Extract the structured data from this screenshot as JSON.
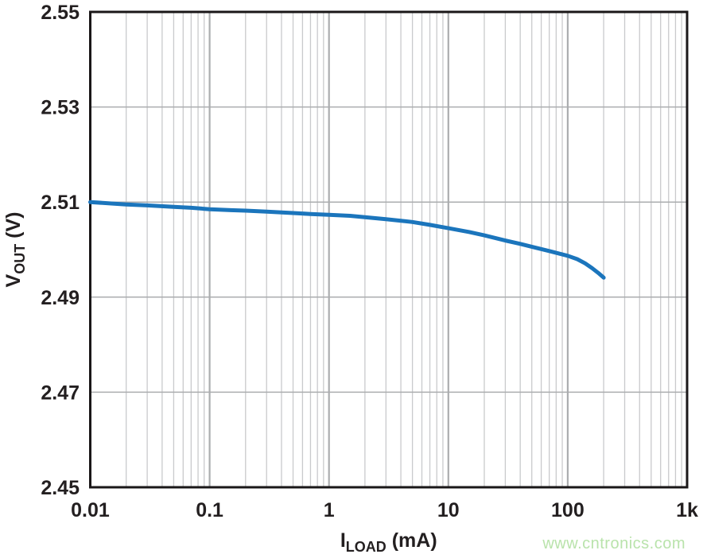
{
  "page": {
    "background": "#ffffff"
  },
  "watermark": {
    "text": "www.cntronics.com",
    "color": "#b9e3ab"
  },
  "chart_data": {
    "type": "line",
    "title": "",
    "xlabel": "ILOAD (mA)",
    "xlabel_parts": {
      "prefix": "I",
      "sub": "LOAD",
      "suffix": " (mA)"
    },
    "ylabel": "VOUT (V)",
    "ylabel_parts": {
      "prefix": "V",
      "sub": "OUT",
      "suffix": " (V)"
    },
    "x_scale": "log",
    "xlim": [
      0.01,
      1000
    ],
    "ylim": [
      2.45,
      2.55
    ],
    "xticks": [
      {
        "value": 0.01,
        "label": "0.01"
      },
      {
        "value": 0.1,
        "label": "0.1"
      },
      {
        "value": 1,
        "label": "1"
      },
      {
        "value": 10,
        "label": "10"
      },
      {
        "value": 100,
        "label": "100"
      },
      {
        "value": 1000,
        "label": "1k"
      }
    ],
    "yticks": [
      {
        "value": 2.45,
        "label": "2.45"
      },
      {
        "value": 2.47,
        "label": "2.47"
      },
      {
        "value": 2.49,
        "label": "2.49"
      },
      {
        "value": 2.51,
        "label": "2.51"
      },
      {
        "value": 2.53,
        "label": "2.53"
      },
      {
        "value": 2.55,
        "label": "2.55"
      }
    ],
    "grid": {
      "vertical_log_minor": true,
      "vertical_decades": [
        0.1,
        1,
        10,
        100
      ],
      "horizontal": [
        2.47,
        2.49,
        2.51,
        2.53
      ],
      "legend": "none"
    },
    "colors": {
      "curve": "#1b75bc",
      "frame": "#1a1718",
      "grid_minor": "#c9cacc",
      "grid_major": "#abadaf",
      "text": "#231f20"
    },
    "series": [
      {
        "name": "VOUT vs ILOAD",
        "points": [
          [
            0.01,
            2.51
          ],
          [
            0.015,
            2.5097
          ],
          [
            0.02,
            2.5095
          ],
          [
            0.03,
            2.5093
          ],
          [
            0.05,
            2.509
          ],
          [
            0.07,
            2.5088
          ],
          [
            0.1,
            2.5085
          ],
          [
            0.15,
            2.5083
          ],
          [
            0.2,
            2.5082
          ],
          [
            0.3,
            2.508
          ],
          [
            0.5,
            2.5077
          ],
          [
            0.7,
            2.5075
          ],
          [
            1,
            2.5073
          ],
          [
            1.5,
            2.5071
          ],
          [
            2,
            2.5068
          ],
          [
            3,
            2.5064
          ],
          [
            5,
            2.5058
          ],
          [
            7,
            2.5052
          ],
          [
            10,
            2.5045
          ],
          [
            15,
            2.5037
          ],
          [
            20,
            2.503
          ],
          [
            30,
            2.5019
          ],
          [
            40,
            2.5012
          ],
          [
            50,
            2.5006
          ],
          [
            70,
            2.4997
          ],
          [
            100,
            2.4987
          ],
          [
            120,
            2.498
          ],
          [
            140,
            2.4971
          ],
          [
            160,
            2.4961
          ],
          [
            180,
            2.4951
          ],
          [
            200,
            2.4941
          ]
        ]
      }
    ]
  }
}
